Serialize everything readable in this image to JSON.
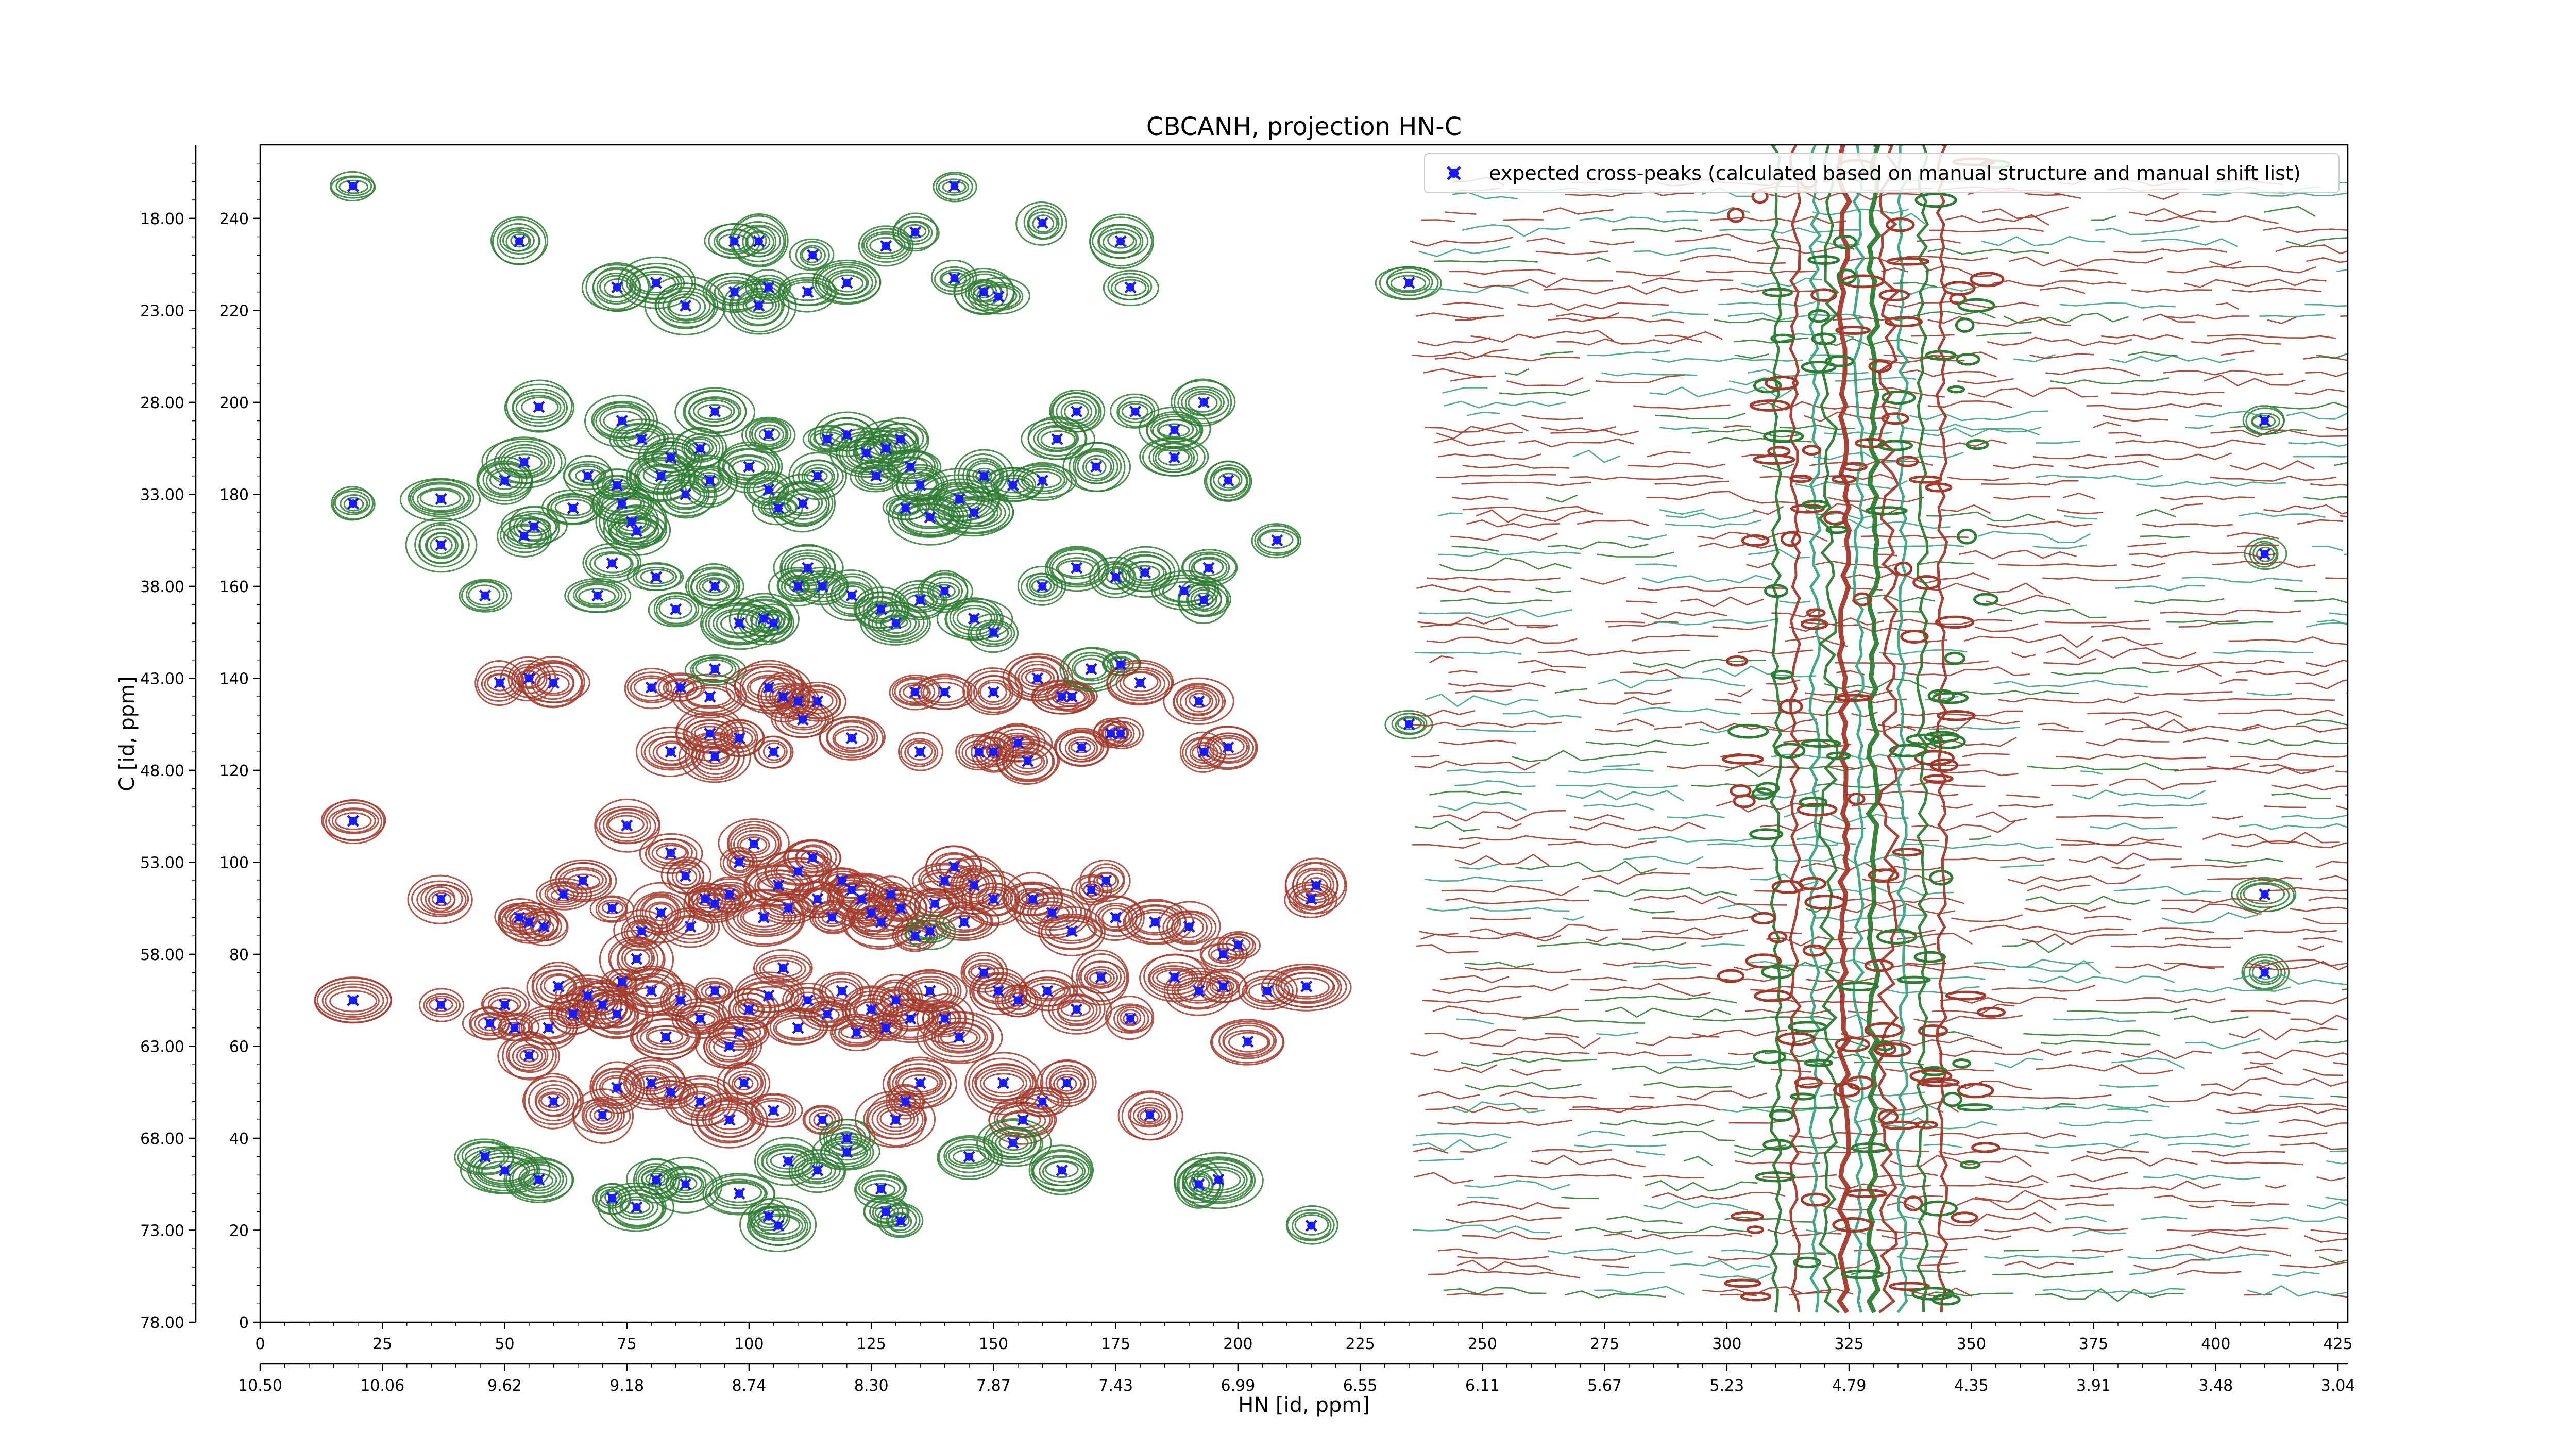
{
  "chart_data": {
    "type": "scatter",
    "title": "CBCANH, projection HN-C",
    "xlabel": "HN [id, ppm]",
    "ylabel": "C [id, ppm]",
    "x_index_ticks": [
      "0",
      "25",
      "50",
      "75",
      "100",
      "125",
      "150",
      "175",
      "200",
      "225",
      "250",
      "275",
      "300",
      "325",
      "350",
      "375",
      "400",
      "425"
    ],
    "x_ppm_ticks": [
      "10.50",
      "10.06",
      "9.62",
      "9.18",
      "8.74",
      "8.30",
      "7.87",
      "7.43",
      "6.99",
      "6.55",
      "6.11",
      "5.67",
      "5.23",
      "4.79",
      "4.35",
      "3.91",
      "3.48",
      "3.04"
    ],
    "y_index_ticks": [
      "0",
      "20",
      "40",
      "60",
      "80",
      "100",
      "120",
      "140",
      "160",
      "180",
      "200",
      "220",
      "240"
    ],
    "y_ppm_ticks": [
      "78.00",
      "73.00",
      "68.00",
      "63.00",
      "58.00",
      "53.00",
      "48.00",
      "43.00",
      "38.00",
      "33.00",
      "28.00",
      "23.00",
      "18.00"
    ],
    "xlim": [
      0,
      427
    ],
    "ylim": [
      0,
      256
    ],
    "grid": false,
    "legend_position": "top-right",
    "colors": {
      "positive_contours": "#2e7d32",
      "negative_contours": "#a33a2c",
      "expected_marker": "#1a1aff"
    },
    "series": [
      {
        "name": "expected cross-peaks (calculated based on manual structure and manual shift list)",
        "marker": "x",
        "color": "#1a1aff",
        "points": [
          [
            19,
            247
          ],
          [
            142,
            247
          ],
          [
            53,
            235
          ],
          [
            97,
            235
          ],
          [
            102,
            235
          ],
          [
            113,
            232
          ],
          [
            128,
            234
          ],
          [
            134,
            237
          ],
          [
            160,
            239
          ],
          [
            176,
            235
          ],
          [
            73,
            225
          ],
          [
            81,
            226
          ],
          [
            87,
            221
          ],
          [
            97,
            224
          ],
          [
            102,
            221
          ],
          [
            104,
            225
          ],
          [
            112,
            224
          ],
          [
            120,
            226
          ],
          [
            142,
            227
          ],
          [
            148,
            224
          ],
          [
            151,
            223
          ],
          [
            178,
            225
          ],
          [
            19,
            178
          ],
          [
            37,
            179
          ],
          [
            37,
            169
          ],
          [
            57,
            199
          ],
          [
            54,
            187
          ],
          [
            50,
            183
          ],
          [
            64,
            177
          ],
          [
            56,
            173
          ],
          [
            54,
            171
          ],
          [
            67,
            184
          ],
          [
            74,
            196
          ],
          [
            78,
            192
          ],
          [
            73,
            182
          ],
          [
            74,
            178
          ],
          [
            76,
            174
          ],
          [
            77,
            172
          ],
          [
            82,
            184
          ],
          [
            84,
            188
          ],
          [
            87,
            180
          ],
          [
            90,
            190
          ],
          [
            92,
            183
          ],
          [
            93,
            198
          ],
          [
            100,
            186
          ],
          [
            104,
            193
          ],
          [
            104,
            181
          ],
          [
            106,
            177
          ],
          [
            111,
            178
          ],
          [
            114,
            184
          ],
          [
            116,
            192
          ],
          [
            120,
            193
          ],
          [
            124,
            189
          ],
          [
            126,
            184
          ],
          [
            128,
            190
          ],
          [
            131,
            192
          ],
          [
            133,
            186
          ],
          [
            135,
            182
          ],
          [
            132,
            177
          ],
          [
            137,
            175
          ],
          [
            143,
            179
          ],
          [
            146,
            176
          ],
          [
            148,
            184
          ],
          [
            154,
            182
          ],
          [
            160,
            183
          ],
          [
            163,
            192
          ],
          [
            167,
            198
          ],
          [
            171,
            186
          ],
          [
            179,
            198
          ],
          [
            187,
            194
          ],
          [
            193,
            200
          ],
          [
            187,
            188
          ],
          [
            198,
            183
          ],
          [
            46,
            158
          ],
          [
            69,
            158
          ],
          [
            72,
            165
          ],
          [
            81,
            162
          ],
          [
            85,
            155
          ],
          [
            93,
            160
          ],
          [
            98,
            152
          ],
          [
            103,
            153
          ],
          [
            105,
            152
          ],
          [
            110,
            160
          ],
          [
            112,
            164
          ],
          [
            115,
            160
          ],
          [
            121,
            158
          ],
          [
            127,
            155
          ],
          [
            130,
            152
          ],
          [
            135,
            157
          ],
          [
            140,
            159
          ],
          [
            146,
            153
          ],
          [
            150,
            150
          ],
          [
            160,
            160
          ],
          [
            167,
            164
          ],
          [
            175,
            162
          ],
          [
            181,
            163
          ],
          [
            189,
            159
          ],
          [
            193,
            157
          ],
          [
            194,
            164
          ],
          [
            208,
            170
          ],
          [
            49,
            139
          ],
          [
            55,
            140
          ],
          [
            60,
            139
          ],
          [
            80,
            138
          ],
          [
            86,
            138
          ],
          [
            92,
            136
          ],
          [
            93,
            142
          ],
          [
            104,
            138
          ],
          [
            107,
            136
          ],
          [
            110,
            135
          ],
          [
            114,
            135
          ],
          [
            134,
            137
          ],
          [
            140,
            137
          ],
          [
            150,
            137
          ],
          [
            159,
            140
          ],
          [
            164,
            136
          ],
          [
            166,
            136
          ],
          [
            170,
            142
          ],
          [
            176,
            143
          ],
          [
            180,
            139
          ],
          [
            192,
            135
          ],
          [
            84,
            124
          ],
          [
            93,
            123
          ],
          [
            92,
            128
          ],
          [
            98,
            127
          ],
          [
            105,
            124
          ],
          [
            111,
            131
          ],
          [
            121,
            127
          ],
          [
            135,
            124
          ],
          [
            147,
            124
          ],
          [
            150,
            124
          ],
          [
            155,
            126
          ],
          [
            157,
            122
          ],
          [
            168,
            125
          ],
          [
            174,
            128
          ],
          [
            193,
            124
          ],
          [
            198,
            125
          ],
          [
            235,
            130
          ],
          [
            19,
            109
          ],
          [
            37,
            92
          ],
          [
            19,
            70
          ],
          [
            37,
            69
          ],
          [
            47,
            65
          ],
          [
            50,
            69
          ],
          [
            52,
            64
          ],
          [
            55,
            58
          ],
          [
            59,
            64
          ],
          [
            61,
            73
          ],
          [
            64,
            67
          ],
          [
            67,
            71
          ],
          [
            70,
            69
          ],
          [
            73,
            67
          ],
          [
            74,
            74
          ],
          [
            77,
            79
          ],
          [
            80,
            72
          ],
          [
            83,
            62
          ],
          [
            86,
            70
          ],
          [
            90,
            66
          ],
          [
            93,
            72
          ],
          [
            96,
            60
          ],
          [
            98,
            63
          ],
          [
            100,
            68
          ],
          [
            104,
            71
          ],
          [
            107,
            77
          ],
          [
            110,
            64
          ],
          [
            112,
            70
          ],
          [
            116,
            67
          ],
          [
            119,
            72
          ],
          [
            122,
            63
          ],
          [
            125,
            68
          ],
          [
            128,
            64
          ],
          [
            130,
            70
          ],
          [
            133,
            66
          ],
          [
            137,
            72
          ],
          [
            140,
            66
          ],
          [
            143,
            62
          ],
          [
            148,
            76
          ],
          [
            151,
            72
          ],
          [
            155,
            70
          ],
          [
            161,
            72
          ],
          [
            167,
            68
          ],
          [
            172,
            75
          ],
          [
            178,
            66
          ],
          [
            187,
            75
          ],
          [
            192,
            72
          ],
          [
            197,
            73
          ],
          [
            206,
            72
          ],
          [
            214,
            73
          ],
          [
            53,
            88
          ],
          [
            55,
            87
          ],
          [
            58,
            86
          ],
          [
            62,
            93
          ],
          [
            66,
            96
          ],
          [
            72,
            90
          ],
          [
            75,
            108
          ],
          [
            78,
            85
          ],
          [
            82,
            89
          ],
          [
            84,
            102
          ],
          [
            87,
            97
          ],
          [
            88,
            86
          ],
          [
            91,
            92
          ],
          [
            93,
            91
          ],
          [
            96,
            93
          ],
          [
            98,
            100
          ],
          [
            101,
            104
          ],
          [
            103,
            88
          ],
          [
            106,
            95
          ],
          [
            108,
            90
          ],
          [
            110,
            98
          ],
          [
            113,
            101
          ],
          [
            114,
            92
          ],
          [
            117,
            88
          ],
          [
            119,
            96
          ],
          [
            121,
            94
          ],
          [
            123,
            92
          ],
          [
            125,
            89
          ],
          [
            127,
            87
          ],
          [
            129,
            93
          ],
          [
            131,
            90
          ],
          [
            134,
            84
          ],
          [
            138,
            91
          ],
          [
            140,
            96
          ],
          [
            142,
            99
          ],
          [
            144,
            87
          ],
          [
            146,
            95
          ],
          [
            150,
            92
          ],
          [
            158,
            92
          ],
          [
            162,
            89
          ],
          [
            166,
            85
          ],
          [
            170,
            94
          ],
          [
            173,
            96
          ],
          [
            175,
            88
          ],
          [
            183,
            87
          ],
          [
            190,
            86
          ],
          [
            197,
            80
          ],
          [
            200,
            82
          ],
          [
            216,
            95
          ],
          [
            215,
            92
          ],
          [
            60,
            48
          ],
          [
            70,
            45
          ],
          [
            73,
            51
          ],
          [
            80,
            52
          ],
          [
            84,
            50
          ],
          [
            90,
            48
          ],
          [
            96,
            44
          ],
          [
            99,
            52
          ],
          [
            105,
            46
          ],
          [
            115,
            44
          ],
          [
            120,
            40
          ],
          [
            130,
            44
          ],
          [
            132,
            48
          ],
          [
            135,
            52
          ],
          [
            152,
            52
          ],
          [
            156,
            44
          ],
          [
            160,
            48
          ],
          [
            165,
            52
          ],
          [
            182,
            45
          ],
          [
            46,
            36
          ],
          [
            50,
            33
          ],
          [
            57,
            31
          ],
          [
            72,
            27
          ],
          [
            77,
            25
          ],
          [
            81,
            31
          ],
          [
            87,
            30
          ],
          [
            98,
            28
          ],
          [
            104,
            23
          ],
          [
            106,
            21
          ],
          [
            108,
            35
          ],
          [
            114,
            33
          ],
          [
            120,
            37
          ],
          [
            127,
            29
          ],
          [
            128,
            24
          ],
          [
            131,
            22
          ],
          [
            145,
            36
          ],
          [
            154,
            39
          ],
          [
            164,
            33
          ],
          [
            192,
            30
          ],
          [
            196,
            31
          ],
          [
            215,
            21
          ],
          [
            410,
            196
          ],
          [
            410,
            167
          ],
          [
            410,
            93
          ],
          [
            410,
            76
          ],
          [
            235,
            226
          ],
          [
            202,
            61
          ],
          [
            176,
            128
          ],
          [
            137,
            85
          ]
        ]
      }
    ]
  }
}
